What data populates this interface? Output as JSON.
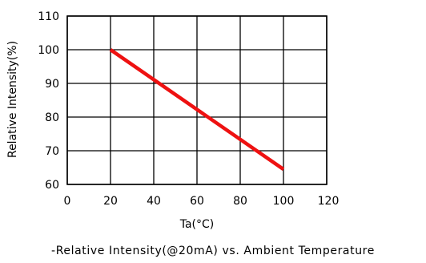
{
  "chart_data": {
    "type": "line",
    "xlabel": "Ta(°C)",
    "ylabel": "Relative  Intensity(%)",
    "caption": "-Relative  Intensity(@20mA)  vs.  Ambient  Temperature",
    "xlim": [
      0,
      120
    ],
    "ylim": [
      60,
      110
    ],
    "xticks": [
      0,
      20,
      40,
      60,
      80,
      100,
      120
    ],
    "yticks": [
      60,
      70,
      80,
      90,
      100,
      110
    ],
    "grid": true,
    "series": [
      {
        "color": "#ee1111",
        "x": [
          20,
          100
        ],
        "y": [
          100,
          64.5
        ]
      }
    ]
  }
}
